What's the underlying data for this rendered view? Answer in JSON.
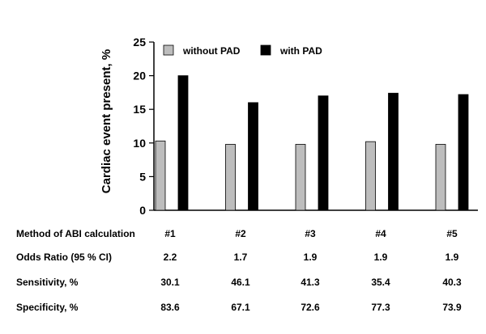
{
  "chart_data": {
    "type": "bar",
    "ylabel": "Cardiac event present, %",
    "ylim": [
      0,
      25
    ],
    "yticks": [
      "0",
      "5",
      "10",
      "15",
      "20",
      "25"
    ],
    "categories": [
      "#1",
      "#2",
      "#3",
      "#4",
      "#5"
    ],
    "series": [
      {
        "name": "without PAD",
        "color": "#bdbdbd",
        "values": [
          10.3,
          9.8,
          9.8,
          10.2,
          9.8
        ]
      },
      {
        "name": "with PAD",
        "color": "#000000",
        "values": [
          20.0,
          16.0,
          17.0,
          17.4,
          17.2
        ]
      }
    ],
    "legend_position": "top"
  },
  "table": {
    "rows": [
      {
        "label": "Method of ABI calculation",
        "values": [
          "#1",
          "#2",
          "#3",
          "#4",
          "#5"
        ]
      },
      {
        "label": "Odds Ratio (95 % CI)",
        "values": [
          "2.2",
          "1.7",
          "1.9",
          "1.9",
          "1.9"
        ]
      },
      {
        "label": "Sensitivity, %",
        "values": [
          "30.1",
          "46.1",
          "41.3",
          "35.4",
          "40.3"
        ]
      },
      {
        "label": "Specificity, %",
        "values": [
          "83.6",
          "67.1",
          "72.6",
          "77.3",
          "73.9"
        ]
      }
    ]
  }
}
